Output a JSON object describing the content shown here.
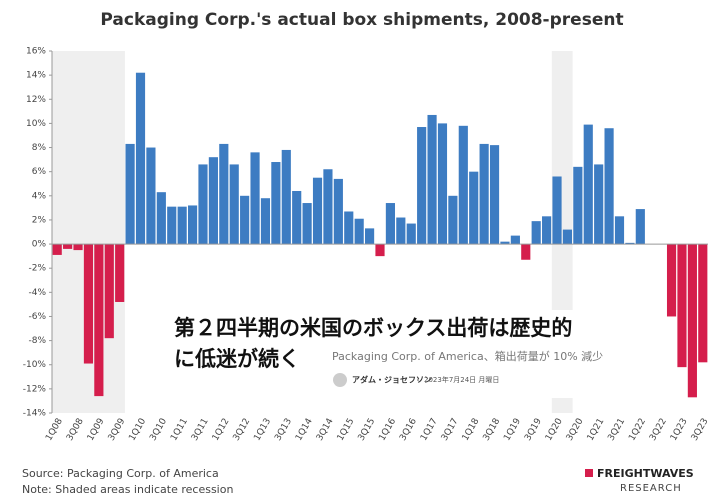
{
  "chart_data": {
    "type": "bar",
    "title": "Packaging Corp.'s actual box shipments, 2008-present",
    "categories": [
      "1Q08",
      null,
      "3Q08",
      null,
      "1Q09",
      null,
      "3Q09",
      null,
      "1Q10",
      null,
      "3Q10",
      null,
      "1Q11",
      null,
      "3Q11",
      null,
      "1Q12",
      null,
      "3Q12",
      null,
      "1Q13",
      null,
      "3Q13",
      null,
      "1Q14",
      null,
      "3Q14",
      null,
      "1Q15",
      null,
      "3Q15",
      null,
      "1Q16",
      null,
      "3Q16",
      null,
      "1Q17",
      null,
      "3Q17",
      null,
      "1Q18",
      null,
      "3Q18",
      null,
      "1Q19",
      null,
      "3Q19",
      null,
      "1Q20",
      null,
      "3Q20",
      null,
      "1Q21",
      null,
      "3Q21",
      null,
      "1Q22",
      null,
      "3Q22",
      null,
      "1Q23",
      null,
      "3Q23"
    ],
    "values": [
      -0.9,
      -0.4,
      -0.5,
      -9.9,
      -12.6,
      -7.8,
      -4.8,
      8.3,
      14.2,
      8.0,
      4.3,
      3.1,
      3.1,
      3.2,
      6.6,
      7.2,
      8.3,
      6.6,
      4.0,
      7.6,
      3.8,
      6.8,
      7.8,
      4.4,
      3.4,
      5.5,
      6.2,
      5.4,
      2.7,
      2.1,
      1.3,
      -1.0,
      3.4,
      2.2,
      1.7,
      9.7,
      10.7,
      10.0,
      4.0,
      9.8,
      6.0,
      8.3,
      8.2,
      0.2,
      0.7,
      -1.3,
      1.9,
      2.3,
      5.6,
      1.2,
      6.4,
      9.9,
      6.6,
      9.6,
      2.3,
      0.1,
      2.9,
      0,
      0,
      -6.0,
      -10.2,
      -12.7,
      -9.8
    ],
    "positive_color": "#3d7cc2",
    "negative_color": "#d51e4c",
    "shade_color": "#efefef",
    "recession_shading": [
      [
        0,
        6
      ],
      [
        48,
        49
      ]
    ],
    "ylim": [
      -14,
      16
    ],
    "yticks": [
      {
        "value": -14,
        "label": "-14%"
      },
      {
        "value": -12,
        "label": "-12%"
      },
      {
        "value": -10,
        "label": "-10%"
      },
      {
        "value": -8,
        "label": "-8%"
      },
      {
        "value": -6,
        "label": "-6%"
      },
      {
        "value": -4,
        "label": "-4%"
      },
      {
        "value": -2,
        "label": "-2%"
      },
      {
        "value": 0,
        "label": "0%"
      },
      {
        "value": 2,
        "label": "2%"
      },
      {
        "value": 4,
        "label": "4%"
      },
      {
        "value": 6,
        "label": "6%"
      },
      {
        "value": 8,
        "label": "8%"
      },
      {
        "value": 10,
        "label": "10%"
      },
      {
        "value": 12,
        "label": "12%"
      },
      {
        "value": 14,
        "label": "14%"
      },
      {
        "value": 16,
        "label": "16%"
      }
    ],
    "grid": false,
    "source": "Source: Packaging Corp. of America",
    "note": "Note: Shaded areas indicate recession"
  },
  "overlay": {
    "headline": [
      "第２四半期の米国のボックス出荷は歴史的",
      "に低迷が続く"
    ],
    "subtitle": "Packaging Corp. of America、箱出荷量が 10% 減少",
    "author": "アダム・ジョセフソン",
    "date": "2023年7月24日 月曜日"
  },
  "logo": {
    "name": "FREIGHTWAVES",
    "sub": "RESEARCH"
  }
}
